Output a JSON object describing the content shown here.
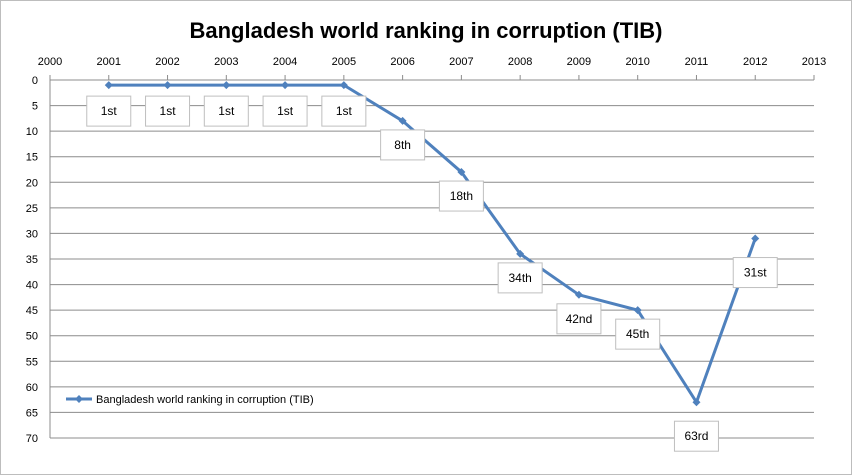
{
  "chart_data": {
    "type": "line",
    "title": "Bangladesh world ranking in corruption (TIB)",
    "xlabel": "",
    "ylabel": "",
    "xlim": [
      2000,
      2013
    ],
    "ylim": [
      0,
      70
    ],
    "y_reversed": true,
    "x_axis_position": "top",
    "x_ticks": [
      "2000",
      "2001",
      "2002",
      "2003",
      "2004",
      "2005",
      "2006",
      "2007",
      "2008",
      "2009",
      "2010",
      "2011",
      "2012",
      "2013"
    ],
    "y_ticks": [
      "0",
      "5",
      "10",
      "15",
      "20",
      "25",
      "30",
      "35",
      "40",
      "45",
      "50",
      "55",
      "60",
      "65",
      "70"
    ],
    "grid": "horizontal",
    "legend_position": "bottom-left",
    "color": "#4f81bd",
    "series": [
      {
        "name": "Bangladesh world ranking in corruption (TIB)",
        "x": [
          2001,
          2002,
          2003,
          2004,
          2005,
          2006,
          2007,
          2008,
          2009,
          2010,
          2011,
          2012
        ],
        "values": [
          1,
          1,
          1,
          1,
          1,
          8,
          18,
          34,
          42,
          45,
          63,
          31
        ],
        "labels": [
          "1st",
          "1st",
          "1st",
          "1st",
          "1st",
          "8th",
          "18th",
          "34th",
          "42nd",
          "45th",
          "63rd",
          "31st"
        ]
      }
    ]
  }
}
